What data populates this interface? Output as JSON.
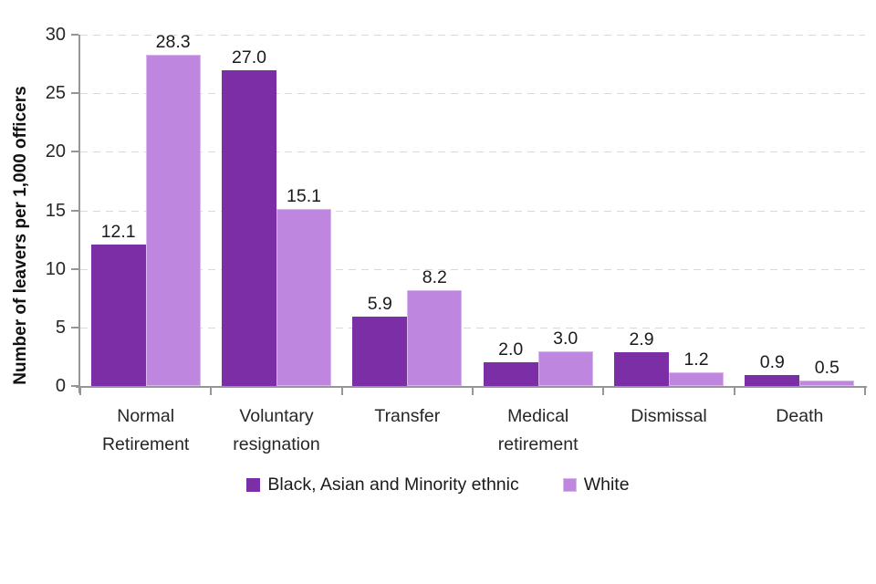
{
  "chart_data": {
    "type": "bar",
    "title": "",
    "xlabel": "",
    "ylabel": "Number of leavers per 1,000 officers",
    "ylim": [
      0,
      30
    ],
    "yticks": [
      0,
      5,
      10,
      15,
      20,
      25,
      30
    ],
    "grid": "horizontal-dashed",
    "legend_position": "bottom-center",
    "bar_value_labels": true,
    "value_label_format": "one-decimal",
    "categories": [
      "Normal\nRetirement",
      "Voluntary\nresignation",
      "Transfer",
      "Medical\nretirement",
      "Dismissal",
      "Death"
    ],
    "series": [
      {
        "name": "Black, Asian and Minority ethnic",
        "color": "#7c2ea6",
        "values": [
          12.1,
          27.0,
          5.9,
          2.0,
          2.9,
          0.9
        ]
      },
      {
        "name": "White",
        "color": "#be86de",
        "border_color": "#d9b6ef",
        "values": [
          28.3,
          15.1,
          8.2,
          3.0,
          1.2,
          0.5
        ]
      }
    ],
    "style": {
      "grid_color": "#d9d9d9",
      "axis_color": "#969696",
      "tick_label_color": "#262626",
      "value_label_color": "#1a1a1a",
      "background": "#ffffff"
    }
  }
}
